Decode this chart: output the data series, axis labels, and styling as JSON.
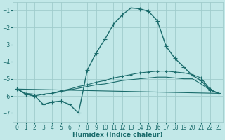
{
  "xlabel": "Humidex (Indice chaleur)",
  "background_color": "#c2e8e8",
  "grid_color": "#a0cccc",
  "line_color": "#1a6b6b",
  "xlim": [
    -0.5,
    23.5
  ],
  "ylim": [
    -7.5,
    -0.5
  ],
  "yticks": [
    -7,
    -6,
    -5,
    -4,
    -3,
    -2,
    -1
  ],
  "xticks": [
    0,
    1,
    2,
    3,
    4,
    5,
    6,
    7,
    8,
    9,
    10,
    11,
    12,
    13,
    14,
    15,
    16,
    17,
    18,
    19,
    20,
    21,
    22,
    23
  ],
  "series": [
    {
      "x": [
        0,
        1,
        2,
        3,
        4,
        5,
        6,
        7,
        8,
        9,
        10,
        11,
        12,
        13,
        14,
        15,
        16,
        17,
        18,
        19,
        20,
        21,
        22,
        23
      ],
      "y": [
        -5.6,
        -5.9,
        -6.0,
        -6.5,
        -6.35,
        -6.3,
        -6.5,
        -7.0,
        -4.5,
        -3.5,
        -2.7,
        -1.8,
        -1.25,
        -0.85,
        -0.9,
        -1.05,
        -1.6,
        -3.1,
        -3.8,
        -4.3,
        -4.8,
        -5.1,
        -5.65,
        -5.85
      ],
      "marker": "+",
      "markersize": 4,
      "linewidth": 1.0,
      "linestyle": "-"
    },
    {
      "x": [
        0,
        1,
        2,
        3,
        4,
        5,
        6,
        7,
        8,
        9,
        10,
        11,
        12,
        13,
        14,
        15,
        16,
        17,
        18,
        19,
        20,
        21,
        22,
        23
      ],
      "y": [
        -5.6,
        -5.9,
        -6.0,
        -5.9,
        -5.85,
        -5.7,
        -5.6,
        -5.45,
        -5.35,
        -5.2,
        -5.1,
        -4.95,
        -4.85,
        -4.75,
        -4.65,
        -4.6,
        -4.55,
        -4.55,
        -4.6,
        -4.65,
        -4.75,
        -4.95,
        -5.6,
        -5.85
      ],
      "marker": "+",
      "markersize": 3,
      "linewidth": 0.8,
      "linestyle": "-"
    },
    {
      "x": [
        0,
        1,
        2,
        3,
        4,
        5,
        6,
        7,
        8,
        9,
        10,
        11,
        12,
        13,
        14,
        15,
        16,
        17,
        18,
        19,
        20,
        21,
        22,
        23
      ],
      "y": [
        -5.6,
        -5.85,
        -5.9,
        -5.9,
        -5.85,
        -5.75,
        -5.65,
        -5.55,
        -5.45,
        -5.35,
        -5.3,
        -5.2,
        -5.1,
        -5.05,
        -5.0,
        -4.95,
        -4.9,
        -4.9,
        -4.95,
        -5.0,
        -5.0,
        -5.3,
        -5.65,
        -5.85
      ],
      "marker": null,
      "markersize": 0,
      "linewidth": 0.8,
      "linestyle": "-"
    },
    {
      "x": [
        0,
        23
      ],
      "y": [
        -5.6,
        -5.85
      ],
      "marker": null,
      "markersize": 0,
      "linewidth": 0.8,
      "linestyle": "-"
    }
  ]
}
